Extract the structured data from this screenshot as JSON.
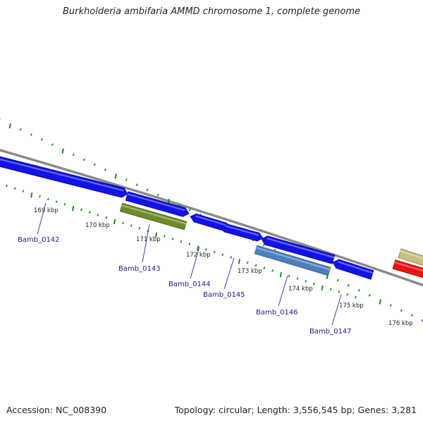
{
  "title": "Burkholderia ambifaria AMMD chromosome 1, complete genome",
  "footer": {
    "accession": "Accession: NC_008390",
    "summary": "Topology: circular; Length: 3,556,545 bp; Genes: 3,281"
  },
  "colors": {
    "backbone": "#8a8a8a",
    "tick": "#1f8a1f",
    "tick_label": "#222222",
    "gene_label": "#1a1a9e",
    "callout_line": "#2a2ab0"
  },
  "ticks": [
    {
      "label": "169 kbp"
    },
    {
      "label": "170 kbp"
    },
    {
      "label": "171 kbp"
    },
    {
      "label": "172 kbp"
    },
    {
      "label": "173 kbp"
    },
    {
      "label": "174 kbp"
    },
    {
      "label": "175 kbp"
    },
    {
      "label": "176 kbp"
    }
  ],
  "genes": [
    {
      "name": "Bamb_0142",
      "color": "#1212e6"
    },
    {
      "name": "Bamb_0143",
      "color": "#1212e6"
    },
    {
      "name": "",
      "color": "#6f8b2a"
    },
    {
      "name": "Bamb_0144",
      "color": "#1212e6"
    },
    {
      "name": "Bamb_0145",
      "color": "#1212e6"
    },
    {
      "name": "",
      "color": "#1212e6"
    },
    {
      "name": "Bamb_0146",
      "color": "#4a7fc0"
    },
    {
      "name": "Bamb_0147",
      "color": "#1212e6"
    },
    {
      "name": "",
      "color": "#c8be82"
    },
    {
      "name": "",
      "color": "#ee1111"
    }
  ]
}
